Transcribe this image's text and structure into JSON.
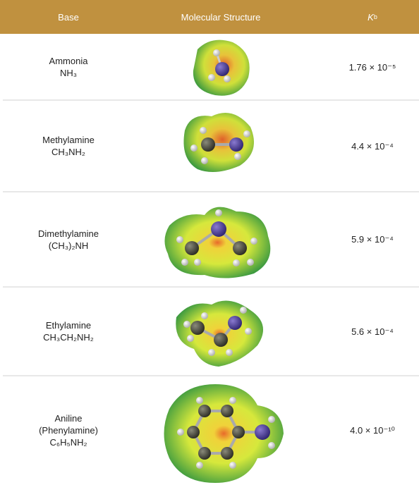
{
  "header": {
    "columns": [
      "Base",
      "Molecular Structure",
      {
        "symbol": "K",
        "subscript": "b"
      }
    ]
  },
  "table": {
    "rows": [
      {
        "name": "Ammonia",
        "formula": "NH₃",
        "kb": "1.76 × 10⁻⁵"
      },
      {
        "name": "Methylamine",
        "formula": "CH₃NH₂",
        "kb": "4.4 × 10⁻⁴"
      },
      {
        "name": "Dimethylamine",
        "formula": "(CH₃)₂NH",
        "kb": "5.9 × 10⁻⁴"
      },
      {
        "name": "Ethylamine",
        "formula": "CH₃CH₂NH₂",
        "kb": "5.6 × 10⁻⁴"
      },
      {
        "name": "Aniline",
        "alt_name": "(Phenylamine)",
        "formula": "C₆H₅NH₂",
        "kb": "4.0 × 10⁻¹⁰"
      }
    ]
  }
}
